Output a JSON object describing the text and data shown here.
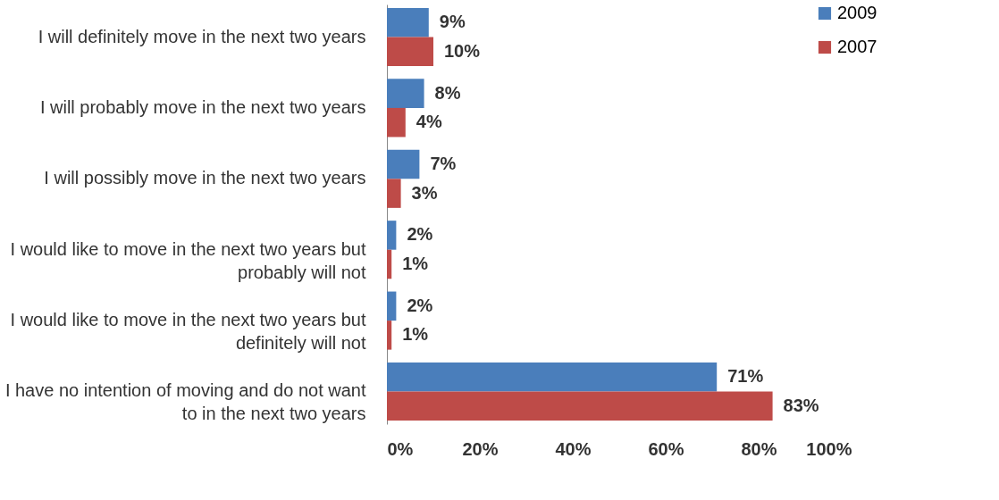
{
  "chart_data": {
    "type": "bar",
    "orientation": "horizontal",
    "categories": [
      "I will definitely move in the next two years",
      "I will probably move in the next two years",
      "I will possibly move in the next two years",
      "I would like to move in the next two years but probably will not",
      "I would like to move in the next two years but definitely will not",
      "I have no intention of moving and do not want to in the next two years"
    ],
    "series": [
      {
        "name": "2009",
        "color": "#4a7ebb",
        "values": [
          9,
          8,
          7,
          2,
          2,
          71
        ],
        "value_labels": [
          "9%",
          "8%",
          "7%",
          "2%",
          "2%",
          "71%"
        ]
      },
      {
        "name": "2007",
        "color": "#be4b48",
        "values": [
          10,
          4,
          3,
          1,
          1,
          83
        ],
        "value_labels": [
          "10%",
          "4%",
          "3%",
          "1%",
          "1%",
          "83%"
        ]
      }
    ],
    "xlim": [
      0,
      100
    ],
    "xticks": [
      {
        "value": 0,
        "label": "0%"
      },
      {
        "value": 20,
        "label": "20%"
      },
      {
        "value": 40,
        "label": "40%"
      },
      {
        "value": 60,
        "label": "60%"
      },
      {
        "value": 80,
        "label": "80%"
      },
      {
        "value": 100,
        "label": "100%"
      }
    ],
    "grid": false,
    "legend": "right"
  }
}
